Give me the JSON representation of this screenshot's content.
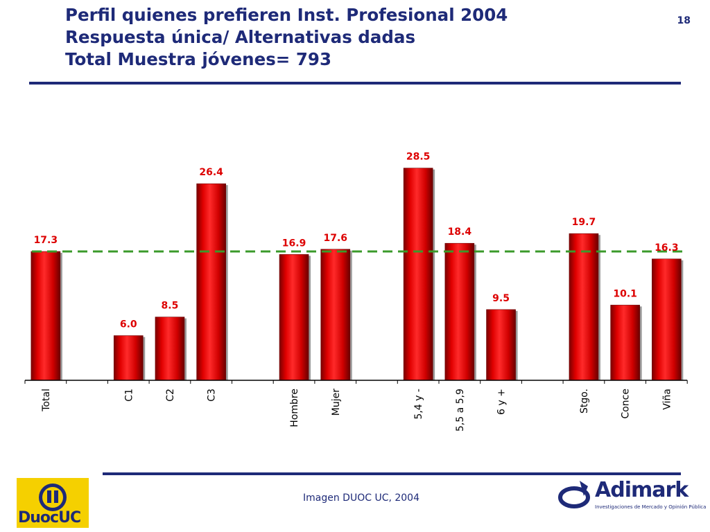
{
  "header": {
    "title_lines": [
      "Perfil quienes prefieren Inst. Profesional 2004",
      "Respuesta única/ Alternativas dadas",
      "Total Muestra jóvenes= 793"
    ],
    "page_number": "18"
  },
  "footer": {
    "caption": "Imagen DUOC UC, 2004",
    "left_logo_text": "DuocUC",
    "right_logo_text": "Adimark",
    "right_logo_subtitle": "Investigaciones de Mercado y Opinión Pública"
  },
  "colors": {
    "title": "#1e2a78",
    "bar": "#dd0000",
    "value_label": "#dd0000",
    "reference_line": "#3a9a2a",
    "axis": "#000000"
  },
  "chart_data": {
    "type": "bar",
    "categories": [
      "Total",
      "",
      "C1",
      "C2",
      "C3",
      "",
      "Hombre",
      "Mujer",
      "",
      "5,4 y -",
      "5,5 a 5,9",
      "6 y +",
      "",
      "Stgo.",
      "Conce",
      "Viña"
    ],
    "values": [
      17.3,
      null,
      6.0,
      8.5,
      26.4,
      null,
      16.9,
      17.6,
      null,
      28.5,
      18.4,
      9.5,
      null,
      19.7,
      10.1,
      16.3
    ],
    "value_labels": [
      "17.3",
      "",
      "6.0",
      "8.5",
      "26.4",
      "",
      "16.9",
      "17.6",
      "",
      "28.5",
      "18.4",
      "9.5",
      "",
      "19.7",
      "10.1",
      "16.3"
    ],
    "reference_line": 17.3,
    "ylim": [
      0,
      32
    ],
    "title": "",
    "xlabel": "",
    "ylabel": "",
    "grid": false,
    "legend": "none"
  }
}
